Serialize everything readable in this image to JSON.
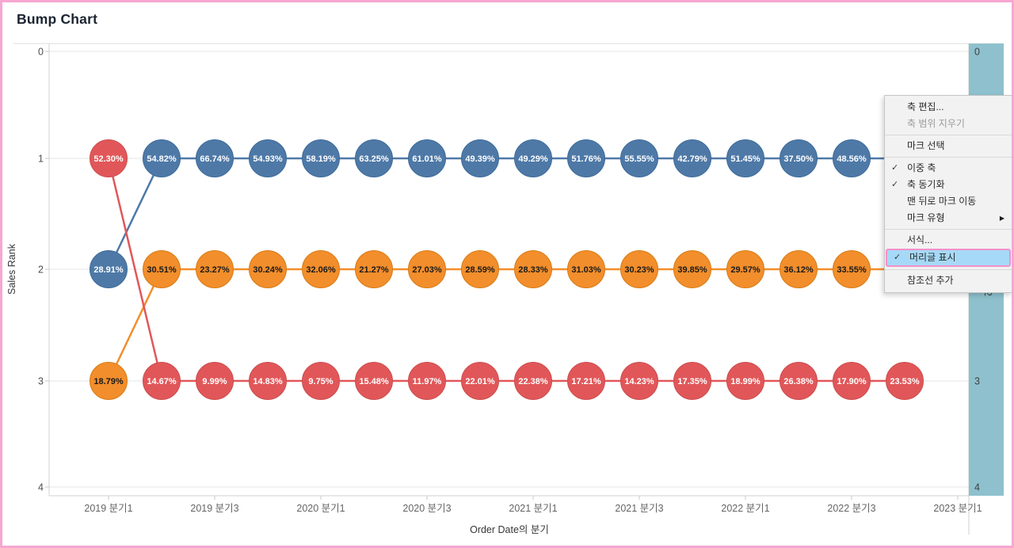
{
  "page": {
    "title": "Bump Chart",
    "border_color": "#f6a7d2"
  },
  "chart_data": {
    "type": "line",
    "variant": "bump",
    "title": "Bump Chart",
    "xlabel": "Order Date의 분기",
    "ylabel": "Sales Rank",
    "x_tick_labels": [
      "2019 분기1",
      "2019 분기3",
      "2020 분기1",
      "2020 분기3",
      "2021 분기1",
      "2021 분기3",
      "2022 분기1",
      "2022 분기3",
      "2023 분기1"
    ],
    "y_tick_labels": [
      "0",
      "1",
      "2",
      "3",
      "4"
    ],
    "ylim": [
      0,
      4
    ],
    "grid": "horizontal",
    "legend": "none",
    "quarters": 16,
    "right_axis": {
      "header_fill": "#8ec1cd",
      "visible_labels": [
        "0",
        "3",
        "4"
      ],
      "visible_label_ranks": [
        0,
        3,
        4
      ],
      "partial_label": "2"
    },
    "series": [
      {
        "name": "series-blue",
        "color": "#4e79a7",
        "edge": "#3c6a99",
        "label_color": "#ffffff",
        "ranks": [
          2,
          1,
          1,
          1,
          1,
          1,
          1,
          1,
          1,
          1,
          1,
          1,
          1,
          1,
          1,
          1
        ],
        "values": [
          "28.91%",
          "54.82%",
          "66.74%",
          "54.93%",
          "58.19%",
          "63.25%",
          "61.01%",
          "49.39%",
          "49.29%",
          "51.76%",
          "55.55%",
          "42.79%",
          "51.45%",
          "37.50%",
          "48.56%",
          null
        ]
      },
      {
        "name": "series-orange",
        "color": "#f28e2b",
        "edge": "#d87b15",
        "label_color": "#1a1a1a",
        "ranks": [
          3,
          2,
          2,
          2,
          2,
          2,
          2,
          2,
          2,
          2,
          2,
          2,
          2,
          2,
          2,
          2
        ],
        "values": [
          "18.79%",
          "30.51%",
          "23.27%",
          "30.24%",
          "32.06%",
          "21.27%",
          "27.03%",
          "28.59%",
          "28.33%",
          "31.03%",
          "30.23%",
          "39.85%",
          "29.57%",
          "36.12%",
          "33.55%",
          null
        ]
      },
      {
        "name": "series-red",
        "color": "#e15759",
        "edge": "#cc4c4e",
        "label_color": "#ffffff",
        "ranks": [
          1,
          3,
          3,
          3,
          3,
          3,
          3,
          3,
          3,
          3,
          3,
          3,
          3,
          3,
          3,
          3
        ],
        "values": [
          "52.30%",
          "14.67%",
          "9.99%",
          "14.83%",
          "9.75%",
          "15.48%",
          "11.97%",
          "22.01%",
          "22.38%",
          "17.21%",
          "14.23%",
          "17.35%",
          "18.99%",
          "26.38%",
          "17.90%",
          "23.53%"
        ]
      }
    ]
  },
  "context_menu": {
    "check_icon": "✓",
    "submenu_icon": "▶",
    "highlight_bg": "#a6d9f7",
    "highlight_border": "#f291c9",
    "items": [
      {
        "name": "edit-axis",
        "type": "item",
        "label": "축 편집..."
      },
      {
        "name": "clear-axis-range",
        "type": "item",
        "label": "축 범위 지우기",
        "disabled": true
      },
      {
        "type": "separator"
      },
      {
        "name": "select-marks",
        "type": "item",
        "label": "마크 선택"
      },
      {
        "type": "separator"
      },
      {
        "name": "dual-axis",
        "type": "item",
        "label": "이중 축",
        "checked": true
      },
      {
        "name": "synchronize-axis",
        "type": "item",
        "label": "축 동기화",
        "checked": true
      },
      {
        "name": "move-marks-to-back",
        "type": "item",
        "label": "맨 뒤로 마크 이동"
      },
      {
        "name": "mark-type",
        "type": "item",
        "label": "마크 유형",
        "submenu": true
      },
      {
        "type": "separator"
      },
      {
        "name": "format",
        "type": "item",
        "label": "서식..."
      },
      {
        "name": "show-header",
        "type": "item",
        "label": "머리글 표시",
        "checked": true,
        "highlighted": true
      },
      {
        "type": "separator"
      },
      {
        "name": "add-reference-line",
        "type": "item",
        "label": "참조선 추가"
      }
    ]
  }
}
